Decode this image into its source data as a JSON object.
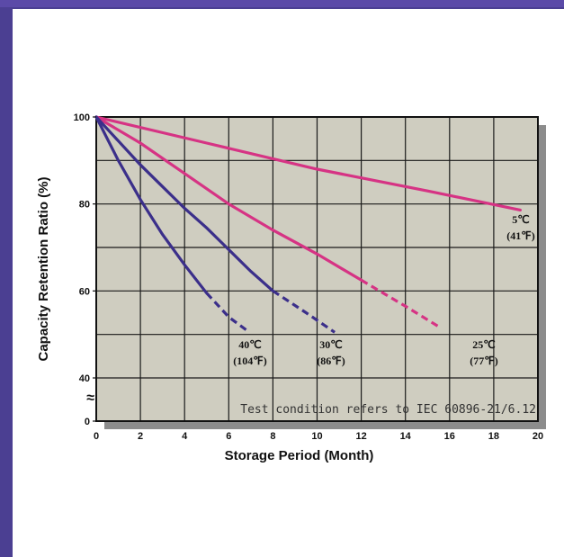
{
  "chart_data": {
    "type": "line",
    "xlabel": "Storage Period (Month)",
    "ylabel": "Capacity Retention Ratio (%)",
    "xlim": [
      0,
      20
    ],
    "ylim_display": [
      40,
      100
    ],
    "x_ticks": [
      "0",
      "2",
      "4",
      "6",
      "8",
      "10",
      "12",
      "14",
      "16",
      "18",
      "20"
    ],
    "y_ticks": [
      "100",
      "80",
      "60",
      "40",
      "0"
    ],
    "y_break_symbol": "≈",
    "grid": true,
    "note": "Test condition refers to IEC 60896-21/6.12",
    "series": [
      {
        "name": "5℃ (41℉)",
        "label_line1": "5℃",
        "label_line2": "(41℉)",
        "color": "#d63384",
        "solid": [
          [
            0,
            100
          ],
          [
            5,
            94
          ],
          [
            10,
            88
          ],
          [
            15,
            83
          ],
          [
            19.2,
            78.6
          ]
        ],
        "dashed": []
      },
      {
        "name": "25℃ (77℉)",
        "label_line1": "25℃",
        "label_line2": "(77℉)",
        "color": "#d63384",
        "solid": [
          [
            0,
            100
          ],
          [
            2,
            94
          ],
          [
            4,
            87
          ],
          [
            6,
            80
          ],
          [
            8,
            74
          ],
          [
            10,
            68.5
          ],
          [
            12,
            62.5
          ]
        ],
        "dashed": [
          [
            12,
            62.5
          ],
          [
            14,
            56.5
          ],
          [
            15.6,
            51.5
          ]
        ]
      },
      {
        "name": "30℃ (86℉)",
        "label_line1": "30℃",
        "label_line2": "(86℉)",
        "color": "#3b2f8a",
        "solid": [
          [
            0,
            100
          ],
          [
            1,
            94.5
          ],
          [
            2,
            89
          ],
          [
            3,
            84
          ],
          [
            4,
            79
          ],
          [
            5,
            74.5
          ],
          [
            6,
            69.5
          ],
          [
            7,
            64.5
          ],
          [
            8,
            60
          ]
        ],
        "dashed": [
          [
            8,
            60
          ],
          [
            9.5,
            55
          ],
          [
            10.8,
            50.5
          ]
        ]
      },
      {
        "name": "40℃ (104℉)",
        "label_line1": "40℃",
        "label_line2": "(104℉)",
        "color": "#3b2f8a",
        "solid": [
          [
            0,
            100
          ],
          [
            1,
            90
          ],
          [
            2,
            81
          ],
          [
            3,
            73
          ],
          [
            4,
            66
          ],
          [
            5,
            59.5
          ]
        ],
        "dashed": [
          [
            5,
            59.5
          ],
          [
            6,
            54
          ],
          [
            6.8,
            51
          ]
        ]
      }
    ]
  }
}
